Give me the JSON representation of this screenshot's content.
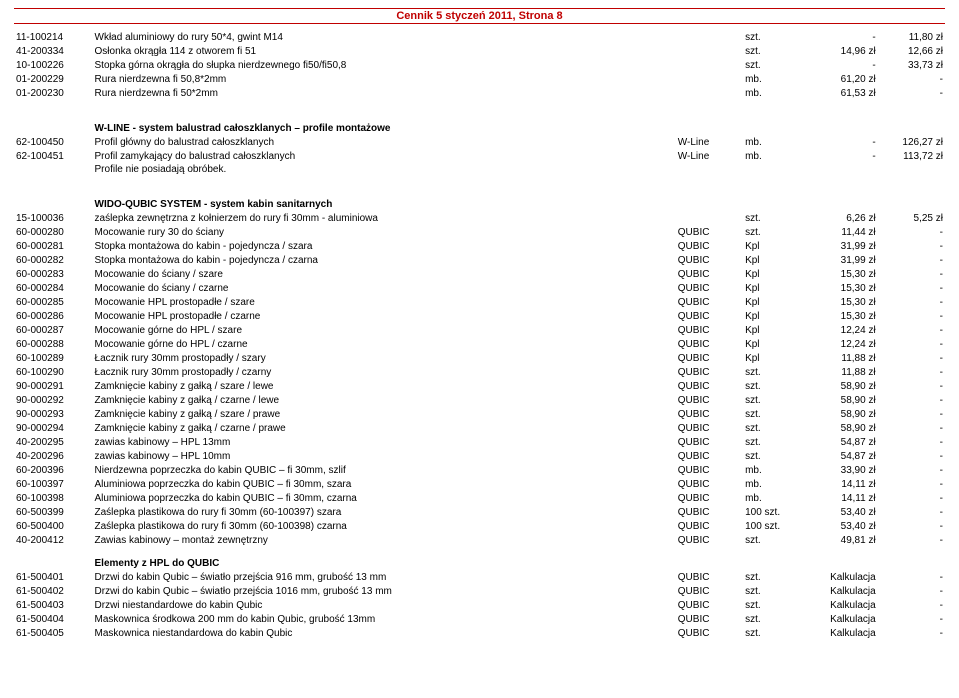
{
  "header": "Cennik 5 styczeń 2011, Strona 8",
  "sections": [
    {
      "rows": [
        {
          "code": "11-100214",
          "desc": "Wkład aluminiowy do rury 50*4, gwint M14",
          "brand": "",
          "unit": "szt.",
          "p1": "-",
          "p2": "11,80 zł"
        },
        {
          "code": "41-200334",
          "desc": "Osłonka okrągła 114 z otworem fi 51",
          "brand": "",
          "unit": "szt.",
          "p1": "14,96 zł",
          "p2": "12,66 zł"
        },
        {
          "code": "10-100226",
          "desc": "Stopka górna okrągła do słupka nierdzewnego fi50/fi50,8",
          "brand": "",
          "unit": "szt.",
          "p1": "-",
          "p2": "33,73 zł"
        },
        {
          "code": "01-200229",
          "desc": "Rura nierdzewna fi 50,8*2mm",
          "brand": "",
          "unit": "mb.",
          "p1": "61,20 zł",
          "p2": "-"
        },
        {
          "code": "01-200230",
          "desc": "Rura nierdzewna fi 50*2mm",
          "brand": "",
          "unit": "mb.",
          "p1": "61,53 zł",
          "p2": "-"
        }
      ]
    },
    {
      "title": "W-LINE  - system balustrad całoszklanych – profile montażowe",
      "rows": [
        {
          "code": "62-100450",
          "desc": "Profil główny do balustrad całoszklanych",
          "brand": "W-Line",
          "unit": "mb.",
          "p1": "-",
          "p2": "126,27 zł"
        },
        {
          "code": "62-100451",
          "desc": "Profil zamykający do balustrad całoszklanych",
          "brand": "W-Line",
          "unit": "mb.",
          "p1": "-",
          "p2": "113,72 zł"
        }
      ],
      "note": "Profile nie posiadają obróbek."
    },
    {
      "title": "WIDO-QUBIC SYSTEM  - system kabin sanitarnych",
      "rows": [
        {
          "code": "15-100036",
          "desc": "zaślepka zewnętrzna z kołnierzem do rury fi 30mm - aluminiowa",
          "brand": "",
          "unit": "szt.",
          "p1": "6,26 zł",
          "p2": "5,25 zł"
        },
        {
          "code": "60-000280",
          "desc": "Mocowanie rury 30 do ściany",
          "brand": "QUBIC",
          "unit": "szt.",
          "p1": "11,44 zł",
          "p2": "-"
        },
        {
          "code": "60-000281",
          "desc": "Stopka montażowa do kabin - pojedyncza / szara",
          "brand": "QUBIC",
          "unit": "Kpl",
          "p1": "31,99 zł",
          "p2": "-"
        },
        {
          "code": "60-000282",
          "desc": "Stopka montażowa do kabin - pojedyncza / czarna",
          "brand": "QUBIC",
          "unit": "Kpl",
          "p1": "31,99 zł",
          "p2": "-"
        },
        {
          "code": "60-000283",
          "desc": "Mocowanie do ściany / szare",
          "brand": "QUBIC",
          "unit": "Kpl",
          "p1": "15,30 zł",
          "p2": "-"
        },
        {
          "code": "60-000284",
          "desc": "Mocowanie do ściany / czarne",
          "brand": "QUBIC",
          "unit": "Kpl",
          "p1": "15,30 zł",
          "p2": "-"
        },
        {
          "code": "60-000285",
          "desc": "Mocowanie HPL prostopadłe / szare",
          "brand": "QUBIC",
          "unit": "Kpl",
          "p1": "15,30 zł",
          "p2": "-"
        },
        {
          "code": "60-000286",
          "desc": "Mocowanie HPL prostopadłe / czarne",
          "brand": "QUBIC",
          "unit": "Kpl",
          "p1": "15,30 zł",
          "p2": "-"
        },
        {
          "code": "60-000287",
          "desc": "Mocowanie górne do HPL / szare",
          "brand": "QUBIC",
          "unit": "Kpl",
          "p1": "12,24 zł",
          "p2": "-"
        },
        {
          "code": "60-000288",
          "desc": "Mocowanie górne do HPL / czarne",
          "brand": "QUBIC",
          "unit": "Kpl",
          "p1": "12,24 zł",
          "p2": "-"
        },
        {
          "code": "60-100289",
          "desc": "Łacznik rury 30mm prostopadły / szary",
          "brand": "QUBIC",
          "unit": "Kpl",
          "p1": "11,88 zł",
          "p2": "-"
        },
        {
          "code": "60-100290",
          "desc": "Łacznik rury 30mm prostopadły / czarny",
          "brand": "QUBIC",
          "unit": "szt.",
          "p1": "11,88 zł",
          "p2": "-"
        },
        {
          "code": "90-000291",
          "desc": "Zamknięcie kabiny z gałką / szare  / lewe",
          "brand": "QUBIC",
          "unit": "szt.",
          "p1": "58,90 zł",
          "p2": "-"
        },
        {
          "code": "90-000292",
          "desc": "Zamknięcie kabiny z gałką / czarne  / lewe",
          "brand": "QUBIC",
          "unit": "szt.",
          "p1": "58,90 zł",
          "p2": "-"
        },
        {
          "code": "90-000293",
          "desc": "Zamknięcie kabiny  z gałką / szare  / prawe",
          "brand": "QUBIC",
          "unit": "szt.",
          "p1": "58,90 zł",
          "p2": "-"
        },
        {
          "code": "90-000294",
          "desc": "Zamknięcie kabiny  z gałką / czarne  / prawe",
          "brand": "QUBIC",
          "unit": "szt.",
          "p1": "58,90 zł",
          "p2": "-"
        },
        {
          "code": "40-200295",
          "desc": "zawias kabinowy – HPL 13mm",
          "brand": "QUBIC",
          "unit": "szt.",
          "p1": "54,87 zł",
          "p2": "-"
        },
        {
          "code": "40-200296",
          "desc": "zawias kabinowy – HPL 10mm",
          "brand": "QUBIC",
          "unit": "szt.",
          "p1": "54,87 zł",
          "p2": "-"
        },
        {
          "code": "60-200396",
          "desc": "Nierdzewna poprzeczka do kabin QUBIC – fi 30mm, szlif",
          "brand": "QUBIC",
          "unit": "mb.",
          "p1": "33,90 zł",
          "p2": "-"
        },
        {
          "code": "60-100397",
          "desc": "Aluminiowa poprzeczka do kabin QUBIC – fi 30mm, szara",
          "brand": "QUBIC",
          "unit": "mb.",
          "p1": "14,11 zł",
          "p2": "-"
        },
        {
          "code": "60-100398",
          "desc": "Aluminiowa poprzeczka do kabin QUBIC – fi 30mm, czarna",
          "brand": "QUBIC",
          "unit": "mb.",
          "p1": "14,11 zł",
          "p2": "-"
        },
        {
          "code": "60-500399",
          "desc": "Zaślepka plastikowa do rury fi 30mm (60-100397) szara",
          "brand": "QUBIC",
          "unit": "100 szt.",
          "p1": "53,40 zł",
          "p2": "-"
        },
        {
          "code": "60-500400",
          "desc": "Zaślepka plastikowa do rury fi 30mm (60-100398) czarna",
          "brand": "QUBIC",
          "unit": "100 szt.",
          "p1": "53,40 zł",
          "p2": "-"
        },
        {
          "code": "40-200412",
          "desc": "Zawias kabinowy – montaż zewnętrzny",
          "brand": "QUBIC",
          "unit": "szt.",
          "p1": "49,81 zł",
          "p2": "-"
        }
      ]
    },
    {
      "subtitle": "Elementy z HPL do QUBIC",
      "rows": [
        {
          "code": "61-500401",
          "desc": "Drzwi do kabin Qubic – światło przejścia 916 mm, grubość 13 mm",
          "brand": "QUBIC",
          "unit": "szt.",
          "p1": "Kalkulacja",
          "p2": "-"
        },
        {
          "code": "61-500402",
          "desc": "Drzwi do kabin Qubic – światło przejścia 1016 mm, grubość 13 mm",
          "brand": "QUBIC",
          "unit": "szt.",
          "p1": "Kalkulacja",
          "p2": "-"
        },
        {
          "code": "61-500403",
          "desc": "Drzwi niestandardowe do kabin Qubic",
          "brand": "QUBIC",
          "unit": "szt.",
          "p1": "Kalkulacja",
          "p2": "-"
        },
        {
          "code": "61-500404",
          "desc": "Maskownica środkowa 200 mm do kabin Qubic, grubość 13mm",
          "brand": "QUBIC",
          "unit": "szt.",
          "p1": "Kalkulacja",
          "p2": "-"
        },
        {
          "code": "61-500405",
          "desc": "Maskownica niestandardowa do kabin Qubic",
          "brand": "QUBIC",
          "unit": "szt.",
          "p1": "Kalkulacja",
          "p2": "-"
        }
      ]
    }
  ]
}
